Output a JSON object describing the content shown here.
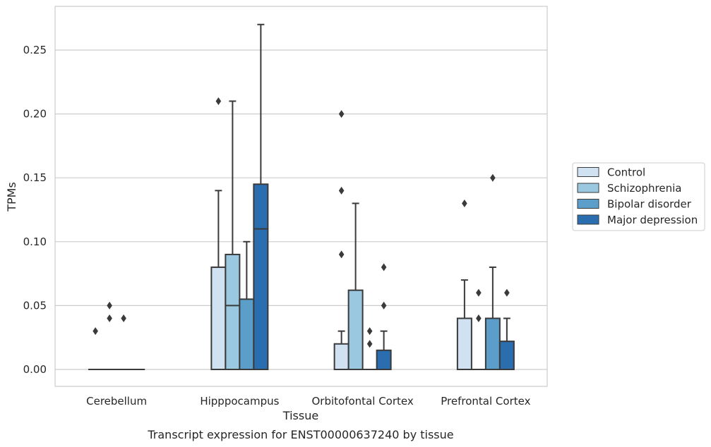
{
  "chart_data": {
    "type": "box",
    "xlabel": "Tissue",
    "ylabel": "TPMs",
    "caption": "Transcript expression for ENST00000637240 by tissue",
    "ylim": [
      -0.013,
      0.285
    ],
    "yticks": [
      0.0,
      0.05,
      0.1,
      0.15,
      0.2,
      0.25
    ],
    "ytick_labels": [
      "0.00",
      "0.05",
      "0.10",
      "0.15",
      "0.20",
      "0.25"
    ],
    "grid": "y",
    "legend_position": "right",
    "categories": [
      "Cerebellum",
      "Hipppocampus",
      "Orbitofontal Cortex",
      "Prefrontal Cortex"
    ],
    "series": [
      {
        "name": "Control",
        "color": "#d0e1f2",
        "boxes": [
          {
            "q1": 0,
            "median": 0,
            "q3": 0,
            "whisker_low": 0,
            "whisker_high": 0,
            "outliers": [
              0.03
            ]
          },
          {
            "q1": 0,
            "median": 0,
            "q3": 0.08,
            "whisker_low": 0,
            "whisker_high": 0.14,
            "outliers": [
              0.21
            ]
          },
          {
            "q1": 0,
            "median": 0,
            "q3": 0.02,
            "whisker_low": 0,
            "whisker_high": 0.03,
            "outliers": [
              0.09,
              0.14,
              0.2
            ]
          },
          {
            "q1": 0,
            "median": 0,
            "q3": 0.04,
            "whisker_low": 0,
            "whisker_high": 0.07,
            "outliers": [
              0.13
            ]
          }
        ]
      },
      {
        "name": "Schizophrenia",
        "color": "#9ac8e0",
        "boxes": [
          {
            "q1": 0,
            "median": 0,
            "q3": 0,
            "whisker_low": 0,
            "whisker_high": 0,
            "outliers": [
              0.04,
              0.05
            ]
          },
          {
            "q1": 0,
            "median": 0.05,
            "q3": 0.09,
            "whisker_low": 0,
            "whisker_high": 0.21,
            "outliers": []
          },
          {
            "q1": 0,
            "median": 0,
            "q3": 0.062,
            "whisker_low": 0,
            "whisker_high": 0.13,
            "outliers": []
          },
          {
            "q1": 0,
            "median": 0,
            "q3": 0,
            "whisker_low": 0,
            "whisker_high": 0,
            "outliers": [
              0.04,
              0.06
            ]
          }
        ]
      },
      {
        "name": "Bipolar disorder",
        "color": "#5a9ec9",
        "boxes": [
          {
            "q1": 0,
            "median": 0,
            "q3": 0,
            "whisker_low": 0,
            "whisker_high": 0,
            "outliers": [
              0.04
            ]
          },
          {
            "q1": 0,
            "median": 0,
            "q3": 0.055,
            "whisker_low": 0,
            "whisker_high": 0.1,
            "outliers": []
          },
          {
            "q1": 0,
            "median": 0,
            "q3": 0,
            "whisker_low": 0,
            "whisker_high": 0,
            "outliers": [
              0.02,
              0.03
            ]
          },
          {
            "q1": 0,
            "median": 0,
            "q3": 0.04,
            "whisker_low": 0,
            "whisker_high": 0.08,
            "outliers": [
              0.15
            ]
          }
        ]
      },
      {
        "name": "Major depression",
        "color": "#2a6eb0",
        "boxes": [
          {
            "q1": 0,
            "median": 0,
            "q3": 0,
            "whisker_low": 0,
            "whisker_high": 0,
            "outliers": []
          },
          {
            "q1": 0,
            "median": 0.11,
            "q3": 0.145,
            "whisker_low": 0,
            "whisker_high": 0.27,
            "outliers": []
          },
          {
            "q1": 0,
            "median": 0,
            "q3": 0.015,
            "whisker_low": 0,
            "whisker_high": 0.03,
            "outliers": [
              0.05,
              0.08
            ]
          },
          {
            "q1": 0,
            "median": 0,
            "q3": 0.022,
            "whisker_low": 0,
            "whisker_high": 0.04,
            "outliers": [
              0.06
            ]
          }
        ]
      }
    ]
  }
}
